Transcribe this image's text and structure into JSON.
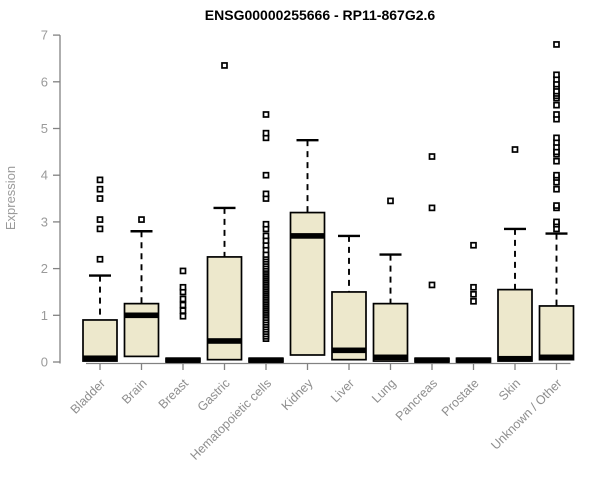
{
  "colors": {
    "box_fill": "#EDE8CC",
    "box_stroke": "#000000",
    "median_color": "#000000",
    "axis_color": "#828282",
    "tick_label_color": "#9a9a9a",
    "title_color": "#000000",
    "background": "#ffffff"
  },
  "chart_data": {
    "type": "box",
    "title": "ENSG00000255666 - RP11-867G2.6",
    "ylabel": "Expression",
    "xlabel": "",
    "ylim": [
      0,
      7
    ],
    "yticks": [
      0,
      1,
      2,
      3,
      4,
      5,
      6,
      7
    ],
    "grid": false,
    "legend_position": "none",
    "categories": [
      "Bladder",
      "Brain",
      "Breast",
      "Gastric",
      "Hematopoietic cells",
      "Kidney",
      "Liver",
      "Lung",
      "Pancreas",
      "Prostate",
      "Skin",
      "Unknown / Other"
    ],
    "series": [
      {
        "name": "Bladder",
        "q1": 0.02,
        "median": 0.08,
        "q3": 0.9,
        "whisker_low": 0.02,
        "whisker_high": 1.85,
        "outliers": [
          2.2,
          2.85,
          3.05,
          3.5,
          3.7,
          3.9
        ]
      },
      {
        "name": "Brain",
        "q1": 0.12,
        "median": 1.0,
        "q3": 1.25,
        "whisker_low": 0.12,
        "whisker_high": 2.8,
        "outliers": [
          3.05
        ]
      },
      {
        "name": "Breast",
        "q1": 0.0,
        "median": 0.04,
        "q3": 0.08,
        "whisker_low": 0.0,
        "whisker_high": 0.08,
        "outliers": [
          0.98,
          1.1,
          1.22,
          1.35,
          1.5,
          1.6,
          1.95
        ]
      },
      {
        "name": "Gastric",
        "q1": 0.05,
        "median": 0.45,
        "q3": 2.25,
        "whisker_low": 0.05,
        "whisker_high": 3.3,
        "outliers": [
          6.35
        ]
      },
      {
        "name": "Hematopoietic cells",
        "q1": 0.0,
        "median": 0.04,
        "q3": 0.08,
        "whisker_low": 0.0,
        "whisker_high": 0.08,
        "outliers": [
          0.5,
          0.55,
          0.6,
          0.65,
          0.7,
          0.75,
          0.8,
          0.85,
          0.9,
          0.95,
          1.0,
          1.04,
          1.08,
          1.12,
          1.16,
          1.2,
          1.24,
          1.28,
          1.32,
          1.36,
          1.4,
          1.44,
          1.48,
          1.52,
          1.56,
          1.6,
          1.64,
          1.68,
          1.72,
          1.76,
          1.8,
          1.84,
          1.88,
          1.92,
          1.96,
          2.0,
          2.05,
          2.1,
          2.15,
          2.2,
          2.25,
          2.3,
          2.4,
          2.5,
          2.6,
          2.7,
          2.85,
          2.95,
          3.5,
          3.6,
          4.0,
          4.8,
          4.9,
          5.3
        ]
      },
      {
        "name": "Kidney",
        "q1": 0.15,
        "median": 2.7,
        "q3": 3.2,
        "whisker_low": 0.15,
        "whisker_high": 4.75,
        "outliers": []
      },
      {
        "name": "Liver",
        "q1": 0.05,
        "median": 0.25,
        "q3": 1.5,
        "whisker_low": 0.05,
        "whisker_high": 2.7,
        "outliers": []
      },
      {
        "name": "Lung",
        "q1": 0.02,
        "median": 0.1,
        "q3": 1.25,
        "whisker_low": 0.02,
        "whisker_high": 2.3,
        "outliers": [
          3.45
        ]
      },
      {
        "name": "Pancreas",
        "q1": 0.0,
        "median": 0.04,
        "q3": 0.08,
        "whisker_low": 0.0,
        "whisker_high": 0.08,
        "outliers": [
          1.65,
          3.3,
          4.4
        ]
      },
      {
        "name": "Prostate",
        "q1": 0.0,
        "median": 0.04,
        "q3": 0.08,
        "whisker_low": 0.0,
        "whisker_high": 0.08,
        "outliers": [
          1.3,
          1.45,
          1.6,
          2.5
        ]
      },
      {
        "name": "Skin",
        "q1": 0.02,
        "median": 0.07,
        "q3": 1.55,
        "whisker_low": 0.02,
        "whisker_high": 2.85,
        "outliers": [
          4.55
        ]
      },
      {
        "name": "Unknown / Other",
        "q1": 0.05,
        "median": 0.1,
        "q3": 1.2,
        "whisker_low": 0.05,
        "whisker_high": 2.75,
        "outliers": [
          2.85,
          2.95,
          3.0,
          3.3,
          3.35,
          3.7,
          3.85,
          3.95,
          4.0,
          4.3,
          4.45,
          4.5,
          4.6,
          4.7,
          4.8,
          5.2,
          5.3,
          5.5,
          5.65,
          5.7,
          5.75,
          5.8,
          5.9,
          5.95,
          6.05,
          6.15,
          6.8
        ]
      }
    ]
  }
}
